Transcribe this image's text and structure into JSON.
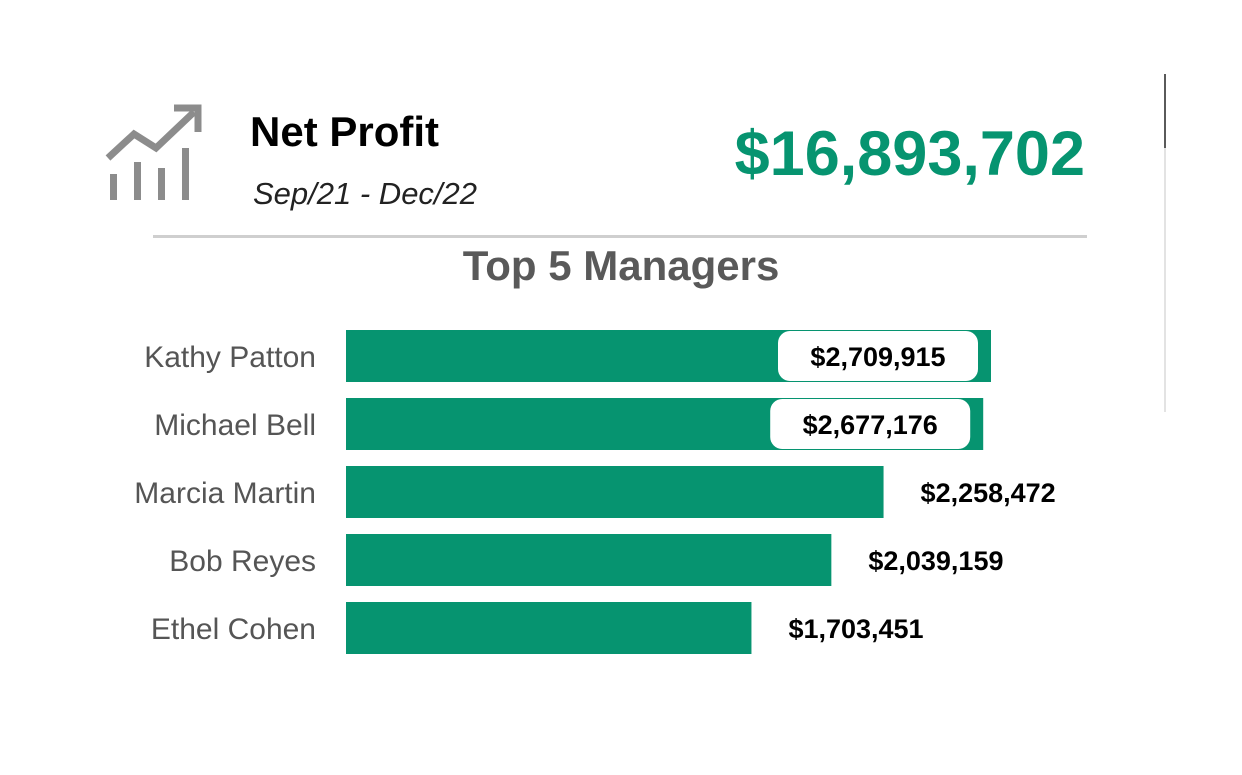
{
  "card": {
    "title": "Net Profit",
    "period": "Sep/21 - Dec/22",
    "total": "$16,893,702",
    "icon": "trending-up-chart-icon"
  },
  "colors": {
    "accent": "#069470",
    "icon": "#8c8c8c",
    "divider": "#cfcfcf"
  },
  "chart_data": {
    "type": "bar",
    "orientation": "horizontal",
    "title": "Top 5 Managers",
    "categories": [
      "Kathy Patton",
      "Michael Bell",
      "Marcia Martin",
      "Bob Reyes",
      "Ethel Cohen"
    ],
    "values": [
      2709915,
      2677176,
      2258472,
      2039159,
      1703451
    ],
    "value_labels": [
      "$2,709,915",
      "$2,677,176",
      "$2,258,472",
      "$2,039,159",
      "$1,703,451"
    ],
    "xlim": [
      0,
      2709915
    ],
    "grid": false,
    "axes_visible": false,
    "legend": "none"
  }
}
